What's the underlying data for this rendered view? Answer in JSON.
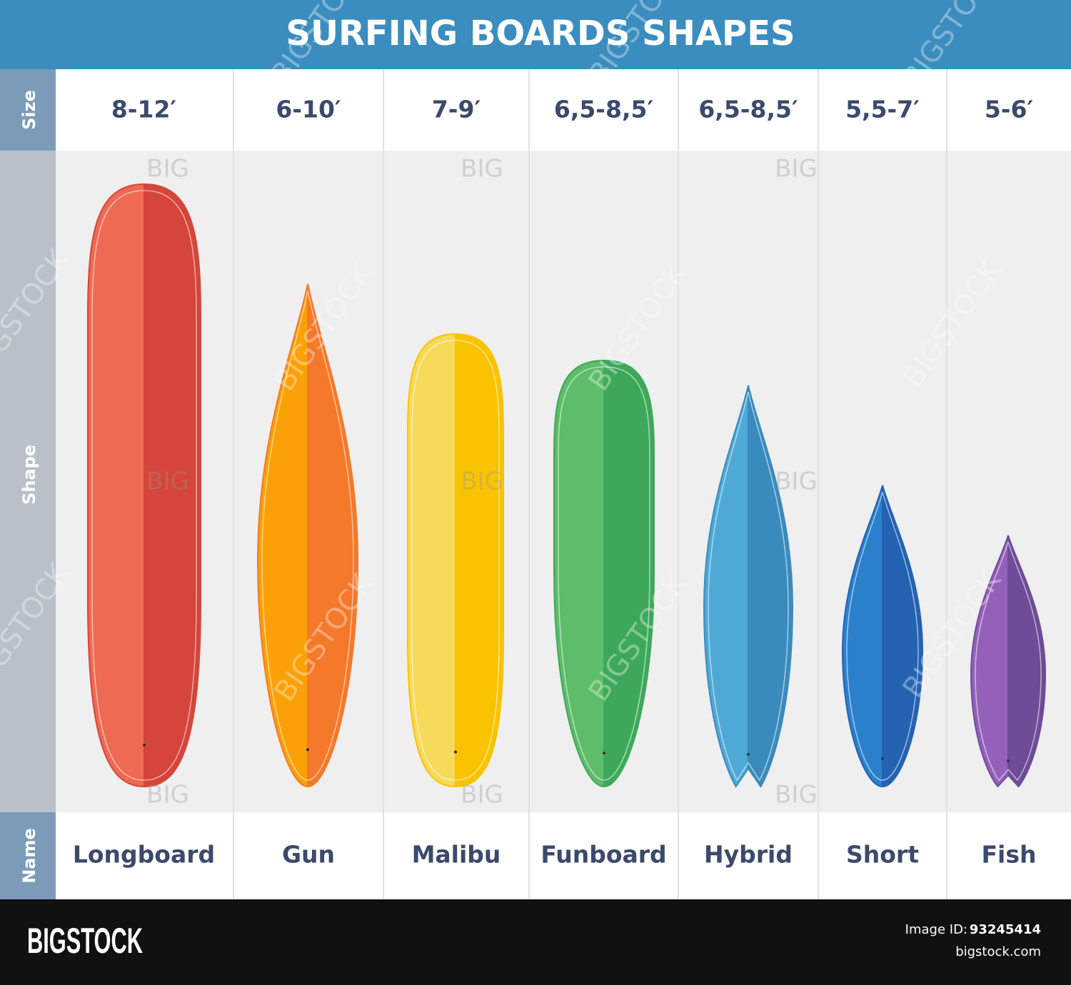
{
  "header": {
    "title": "SURFING BOARDS SHAPES"
  },
  "row_labels": {
    "size": "Size",
    "shape": "Shape",
    "name": "Name"
  },
  "boards": [
    {
      "name": "Longboard",
      "size": "8-12′",
      "color_light": "#ee6a52",
      "color_dark": "#d5453b"
    },
    {
      "name": "Gun",
      "size": "6-10′",
      "color_light": "#fba006",
      "color_dark": "#f5792a"
    },
    {
      "name": "Malibu",
      "size": "7-9′",
      "color_light": "#f8da5a",
      "color_dark": "#f9c300"
    },
    {
      "name": "Funboard",
      "size": "6,5-8,5′",
      "color_light": "#5dbd68",
      "color_dark": "#3ea85a"
    },
    {
      "name": "Hybrid",
      "size": "6,5-8,5′",
      "color_light": "#4fa9d6",
      "color_dark": "#3a8bbd"
    },
    {
      "name": "Short",
      "size": "5,5-7′",
      "color_light": "#2b80cc",
      "color_dark": "#2462b2"
    },
    {
      "name": "Fish",
      "size": "5-6′",
      "color_light": "#9460ba",
      "color_dark": "#6e4c98"
    }
  ],
  "footer": {
    "brand": "BIGSTOCK",
    "id_label": "Image ID:",
    "id": "93245414",
    "site": "bigstock.com"
  },
  "watermark": "BIGSTOCK",
  "watermark_short": "BIG"
}
